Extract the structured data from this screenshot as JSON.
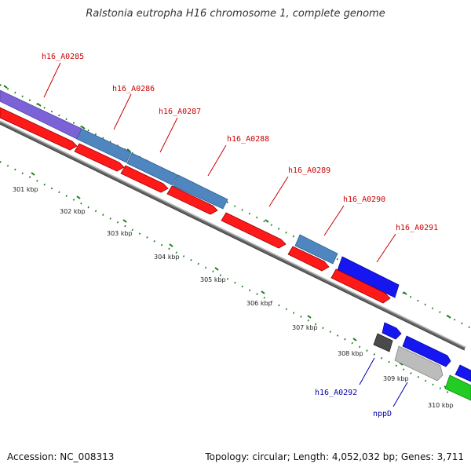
{
  "title": "Ralstonia eutropha H16 chromosome 1, complete genome",
  "footer": {
    "accession": "Accession: NC_008313",
    "info": "Topology: circular; Length: 4,052,032 bp; Genes: 3,711"
  },
  "colors": {
    "red": "#ff1a1a",
    "steelblue": "#4f86bf",
    "purple": "#7b62d6",
    "blue": "#1616f0",
    "dark_gray": "#4a4a4a",
    "light_gray": "#bcbcbc",
    "green": "#22cc22",
    "backbone": "#888888",
    "tick": "#1a7a1a",
    "label_red": "#cc0000",
    "label_blue": "#0000aa"
  },
  "kbp_labels": [
    "301 kbp",
    "302 kbp",
    "303 kbp",
    "304 kbp",
    "305 kbp",
    "306 kbp",
    "307 kbp",
    "308 kbp",
    "309 kbp",
    "310 kbp"
  ],
  "gene_labels": [
    "h16_A0285",
    "h16_A0286",
    "h16_A0287",
    "h16_A0288",
    "h16_A0289",
    "h16_A0290",
    "h16_A0291",
    "h16_A0292",
    "nppD"
  ]
}
